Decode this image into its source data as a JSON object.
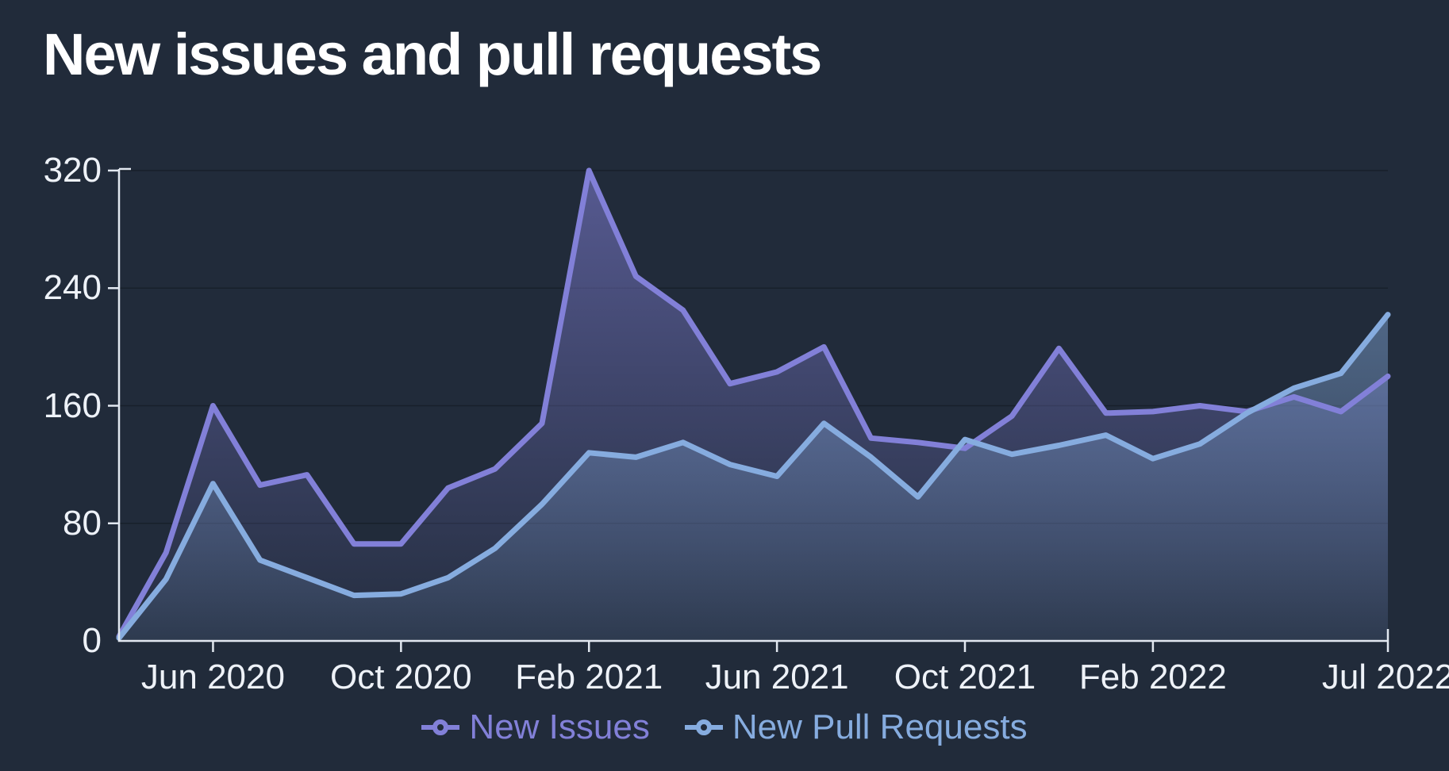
{
  "title": "New issues and pull requests",
  "colors": {
    "background": "#212b3a",
    "axis": "#e2e8f0",
    "tick_label": "#eef2f8",
    "issues": "#8280d8",
    "pull_requests": "#86acdf",
    "gridline": "rgba(0,0,0,0.25)"
  },
  "legend": {
    "items": [
      {
        "label": "New Issues",
        "series": "issues"
      },
      {
        "label": "New Pull Requests",
        "series": "pull_requests"
      }
    ]
  },
  "chart_data": {
    "type": "area",
    "title": "New issues and pull requests",
    "x": [
      "Apr 2020",
      "May 2020",
      "Jun 2020",
      "Jul 2020",
      "Aug 2020",
      "Sep 2020",
      "Oct 2020",
      "Nov 2020",
      "Dec 2020",
      "Jan 2021",
      "Feb 2021",
      "Mar 2021",
      "Apr 2021",
      "May 2021",
      "Jun 2021",
      "Jul 2021",
      "Aug 2021",
      "Sep 2021",
      "Oct 2021",
      "Nov 2021",
      "Dec 2021",
      "Jan 2022",
      "Feb 2022",
      "Mar 2022",
      "Apr 2022",
      "May 2022",
      "Jun 2022",
      "Jul 2022"
    ],
    "series": [
      {
        "name": "New Issues",
        "key": "issues",
        "values": [
          3,
          60,
          160,
          106,
          113,
          66,
          66,
          104,
          117,
          148,
          320,
          248,
          225,
          175,
          183,
          200,
          138,
          135,
          131,
          153,
          199,
          155,
          156,
          160,
          156,
          166,
          156,
          180
        ]
      },
      {
        "name": "New Pull Requests",
        "key": "pull_requests",
        "values": [
          2,
          42,
          107,
          55,
          43,
          31,
          32,
          43,
          63,
          93,
          128,
          125,
          135,
          120,
          112,
          148,
          125,
          98,
          137,
          127,
          133,
          140,
          124,
          134,
          155,
          172,
          182,
          222
        ]
      }
    ],
    "x_ticks": [
      {
        "label": "Jun 2020",
        "index": 2
      },
      {
        "label": "Oct 2020",
        "index": 6
      },
      {
        "label": "Feb 2021",
        "index": 10
      },
      {
        "label": "Jun 2021",
        "index": 14
      },
      {
        "label": "Oct 2021",
        "index": 18
      },
      {
        "label": "Feb 2022",
        "index": 22
      },
      {
        "label": "Jul 2022",
        "index": 27
      }
    ],
    "y_ticks": [
      0,
      80,
      160,
      240,
      320
    ],
    "ylim": [
      0,
      320
    ],
    "grid": "horizontal",
    "legend_position": "bottom"
  }
}
